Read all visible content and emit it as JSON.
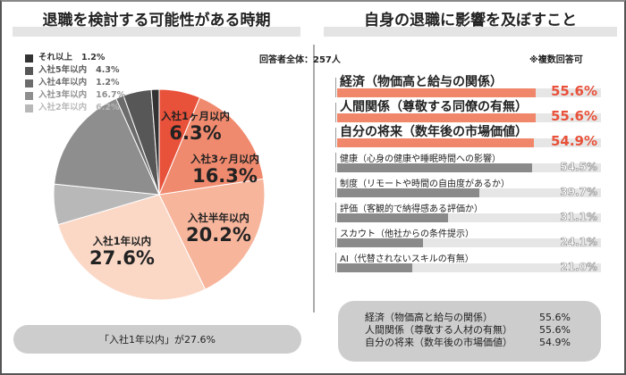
{
  "left": {
    "title": "退職を検討する可能性がある時期",
    "summary": "「入社1年以内」が27.6%"
  },
  "right": {
    "title": "自身の退職に影響を及ぼすこと",
    "respondents": "回答者全体：257人",
    "note": "※複数回答可",
    "summary": [
      {
        "label": "経済（物価高と給与の関係）",
        "value": "55.6%"
      },
      {
        "label": "人間関係（尊敬する人材の有無）",
        "value": "55.6%"
      },
      {
        "label": "自分の将来（数年後の市場価値）",
        "value": "54.9%"
      }
    ]
  },
  "chart_data": [
    {
      "type": "pie",
      "title": "退職を検討する可能性がある時期",
      "slices": [
        {
          "label": "入社1ヶ月以内",
          "value": 6.3,
          "display": "6.3%",
          "color": "#e8513a"
        },
        {
          "label": "入社3ヶ月以内",
          "value": 16.3,
          "display": "16.3%",
          "color": "#f08a6e"
        },
        {
          "label": "入社半年以内",
          "value": 20.2,
          "display": "20.2%",
          "color": "#f7b59c"
        },
        {
          "label": "入社1年以内",
          "value": 27.6,
          "display": "27.6%",
          "color": "#fbd8c6"
        },
        {
          "label": "入社2年以内",
          "value": 6.2,
          "display": "6.2%",
          "color": "#b8b8b8"
        },
        {
          "label": "入社3年以内",
          "value": 16.7,
          "display": "16.7%",
          "color": "#8e8e8e"
        },
        {
          "label": "入社4年以内",
          "value": 1.2,
          "display": "1.2%",
          "color": "#6c6c6c"
        },
        {
          "label": "入社5年以内",
          "value": 4.3,
          "display": "4.3%",
          "color": "#575757"
        },
        {
          "label": "それ以上",
          "value": 1.2,
          "display": "1.2%",
          "color": "#333333"
        }
      ]
    },
    {
      "type": "bar",
      "orientation": "horizontal",
      "title": "自身の退職に影響を及ぼすこと",
      "xlim": [
        0,
        100
      ],
      "categories": [
        "経済（物価高と給与の関係）",
        "人間関係（尊敬する同僚の有無）",
        "自分の将来（数年後の市場価値）",
        "健康（心身の健康や睡眠時間への影響）",
        "制度（リモートや時間の自由度があるか）",
        "評価（客観的で納得感ある評価か）",
        "スカウト（他社からの条件提示）",
        "AI（代替されないスキルの有無）"
      ],
      "values": [
        55.6,
        55.6,
        54.9,
        54.5,
        39.7,
        31.1,
        24.1,
        21.0
      ],
      "display": [
        "55.6%",
        "55.6%",
        "54.9%",
        "54.5%",
        "39.7%",
        "31.1%",
        "24.1%",
        "21.0%"
      ],
      "highlight_color": "#f0876a",
      "base_color": "#8a8a8a"
    }
  ]
}
